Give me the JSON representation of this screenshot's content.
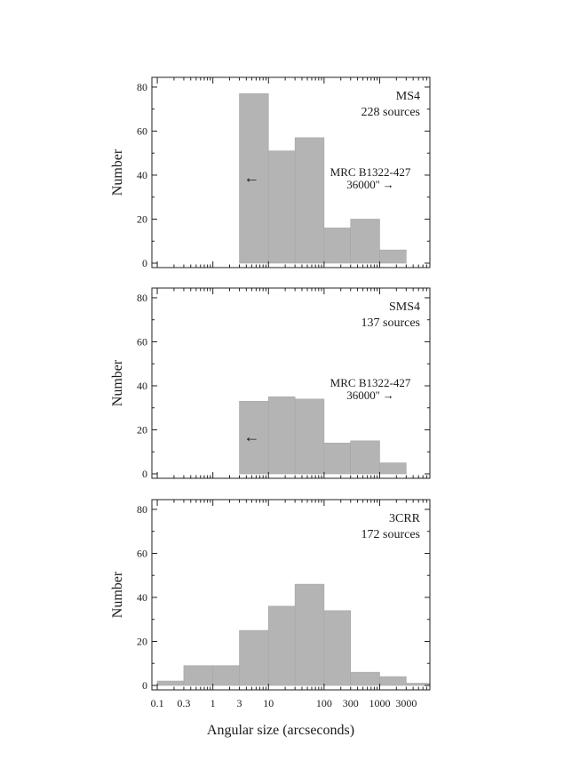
{
  "chart_data": [
    {
      "type": "bar",
      "panel_label": "MS4",
      "count_label": "228 sources",
      "note_line1": "MRC B1322-427",
      "note_line2": "36000'' →",
      "arrow_glyph": "←",
      "arrow_x_value": 5,
      "arrow_y_value": 39,
      "ylabel": "Number",
      "ylim": [
        0,
        82
      ],
      "yticks": [
        0,
        20,
        40,
        60,
        80
      ],
      "x_scale": "log",
      "xlim": [
        0.08,
        8000
      ],
      "bin_edges": [
        3,
        10,
        30,
        100,
        300,
        1000,
        3000
      ],
      "values": [
        77,
        51,
        57,
        16,
        20,
        6
      ]
    },
    {
      "type": "bar",
      "panel_label": "SMS4",
      "count_label": "137 sources",
      "note_line1": "MRC B1322-427",
      "note_line2": "36000'' →",
      "arrow_glyph": "←",
      "arrow_x_value": 5,
      "arrow_y_value": 17,
      "ylabel": "Number",
      "ylim": [
        0,
        82
      ],
      "yticks": [
        0,
        20,
        40,
        60,
        80
      ],
      "x_scale": "log",
      "xlim": [
        0.08,
        8000
      ],
      "bin_edges": [
        3,
        10,
        30,
        100,
        300,
        1000,
        3000
      ],
      "values": [
        33,
        35,
        34,
        14,
        15,
        5
      ]
    },
    {
      "type": "bar",
      "panel_label": "3CRR",
      "count_label": "172 sources",
      "ylabel": "Number",
      "ylim": [
        0,
        82
      ],
      "yticks": [
        0,
        20,
        40,
        60,
        80
      ],
      "x_scale": "log",
      "xlim": [
        0.08,
        8000
      ],
      "bin_edges": [
        0.1,
        0.3,
        1,
        3,
        10,
        30,
        100,
        300,
        1000,
        3000,
        10000
      ],
      "values": [
        2,
        9,
        9,
        25,
        36,
        46,
        34,
        6,
        4,
        1
      ]
    }
  ],
  "x_axis": {
    "ticks": [
      0.1,
      0.3,
      1,
      3,
      10,
      100,
      300,
      1000,
      3000
    ],
    "tick_labels": [
      "0.1",
      "0.3",
      "1",
      "3",
      "10",
      "100",
      "300",
      "1000",
      "3000"
    ],
    "label": "Angular size (arcseconds)"
  },
  "colors": {
    "bar": "#b4b4b4",
    "bar_edge": "#a6a6a6",
    "axis": "#222222"
  }
}
